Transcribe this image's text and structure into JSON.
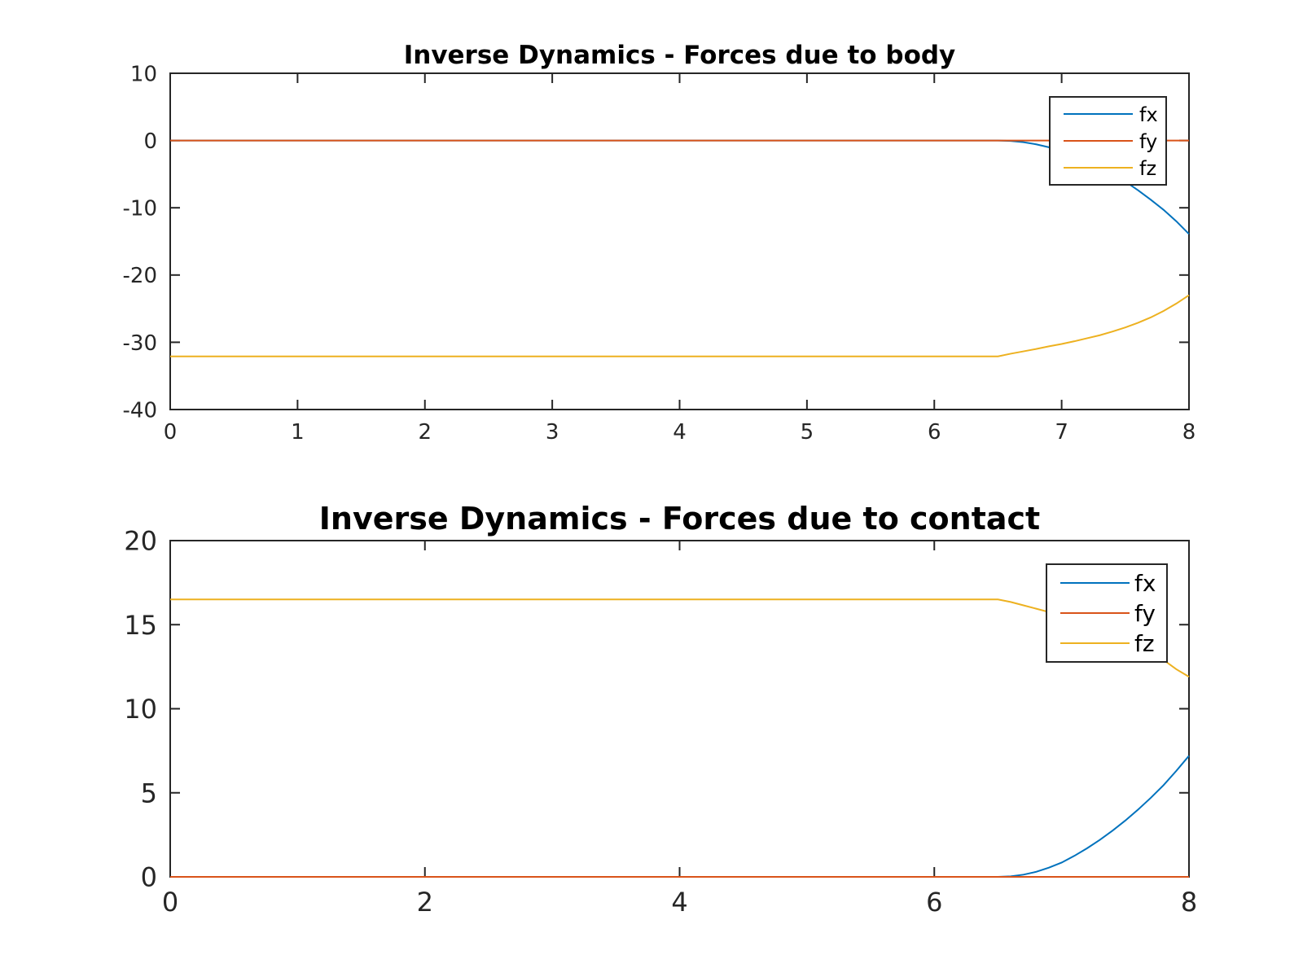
{
  "chart_data": [
    {
      "type": "line",
      "title": "Inverse Dynamics - Forces due to body",
      "xlabel": "",
      "ylabel": "",
      "xlim": [
        0,
        8
      ],
      "ylim": [
        -40,
        10
      ],
      "xticks": [
        0,
        1,
        2,
        3,
        4,
        5,
        6,
        7,
        8
      ],
      "yticks": [
        10,
        0,
        -10,
        -20,
        -30,
        -40
      ],
      "grid": false,
      "legend_position": "top-right",
      "series": [
        {
          "name": "fx",
          "color": "#0072BD",
          "x": [
            0,
            6.5,
            6.6,
            6.7,
            6.8,
            6.9,
            7.0,
            7.1,
            7.2,
            7.3,
            7.4,
            7.5,
            7.6,
            7.7,
            7.8,
            7.9,
            8.0
          ],
          "y": [
            0,
            0,
            -0.06,
            -0.25,
            -0.56,
            -1.0,
            -1.55,
            -2.2,
            -3.0,
            -3.9,
            -4.95,
            -6.1,
            -7.4,
            -8.8,
            -10.3,
            -12.0,
            -13.9
          ]
        },
        {
          "name": "fy",
          "color": "#D95319",
          "x": [
            0,
            8
          ],
          "y": [
            0,
            0
          ]
        },
        {
          "name": "fz",
          "color": "#EDB120",
          "x": [
            0,
            6.5,
            6.6,
            6.7,
            6.8,
            6.9,
            7.0,
            7.1,
            7.2,
            7.3,
            7.4,
            7.5,
            7.6,
            7.7,
            7.8,
            7.9,
            8.0
          ],
          "y": [
            -32.1,
            -32.1,
            -31.7,
            -31.35,
            -31.0,
            -30.6,
            -30.25,
            -29.85,
            -29.4,
            -28.95,
            -28.4,
            -27.8,
            -27.1,
            -26.3,
            -25.35,
            -24.25,
            -23.0
          ]
        }
      ]
    },
    {
      "type": "line",
      "title": "Inverse Dynamics - Forces due to contact",
      "xlabel": "",
      "ylabel": "",
      "xlim": [
        0,
        8
      ],
      "ylim": [
        0,
        20
      ],
      "xticks": [
        0,
        2,
        4,
        6,
        8
      ],
      "yticks": [
        20,
        15,
        10,
        5,
        0
      ],
      "grid": false,
      "legend_position": "top-right",
      "series": [
        {
          "name": "fx",
          "color": "#0072BD",
          "x": [
            0,
            6.5,
            6.6,
            6.7,
            6.8,
            6.9,
            7.0,
            7.1,
            7.2,
            7.3,
            7.4,
            7.5,
            7.6,
            7.7,
            7.8,
            7.9,
            8.0
          ],
          "y": [
            0,
            0,
            0.03,
            0.13,
            0.3,
            0.55,
            0.85,
            1.25,
            1.7,
            2.2,
            2.75,
            3.35,
            4.0,
            4.7,
            5.45,
            6.3,
            7.2
          ]
        },
        {
          "name": "fy",
          "color": "#D95319",
          "x": [
            0,
            8
          ],
          "y": [
            0,
            0
          ]
        },
        {
          "name": "fz",
          "color": "#EDB120",
          "x": [
            0,
            6.5,
            6.6,
            6.7,
            6.8,
            6.9,
            7.0,
            7.1,
            7.2,
            7.3,
            7.4,
            7.5,
            7.6,
            7.7,
            7.8,
            7.9,
            8.0
          ],
          "y": [
            16.5,
            16.5,
            16.35,
            16.15,
            15.95,
            15.75,
            15.55,
            15.35,
            15.15,
            14.95,
            14.7,
            14.35,
            13.95,
            13.45,
            12.9,
            12.35,
            11.9
          ]
        }
      ]
    }
  ]
}
